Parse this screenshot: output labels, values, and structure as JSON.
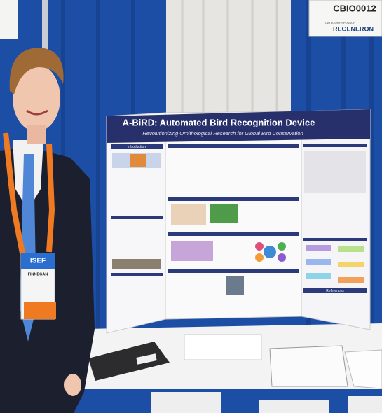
{
  "sign": {
    "code": "CBIO0012",
    "label": "CATEGORY SPONSOR",
    "sponsor": "REGENERON"
  },
  "poster": {
    "title": "A-BiRD: Automated Bird Recognition Device",
    "subtitle": "Revolutionizing Ornithological Research for Global Bird Conservation",
    "sections": [
      "Introduction",
      "References"
    ]
  },
  "badge": {
    "event": "ISEF",
    "name": "FINNEGAN"
  }
}
